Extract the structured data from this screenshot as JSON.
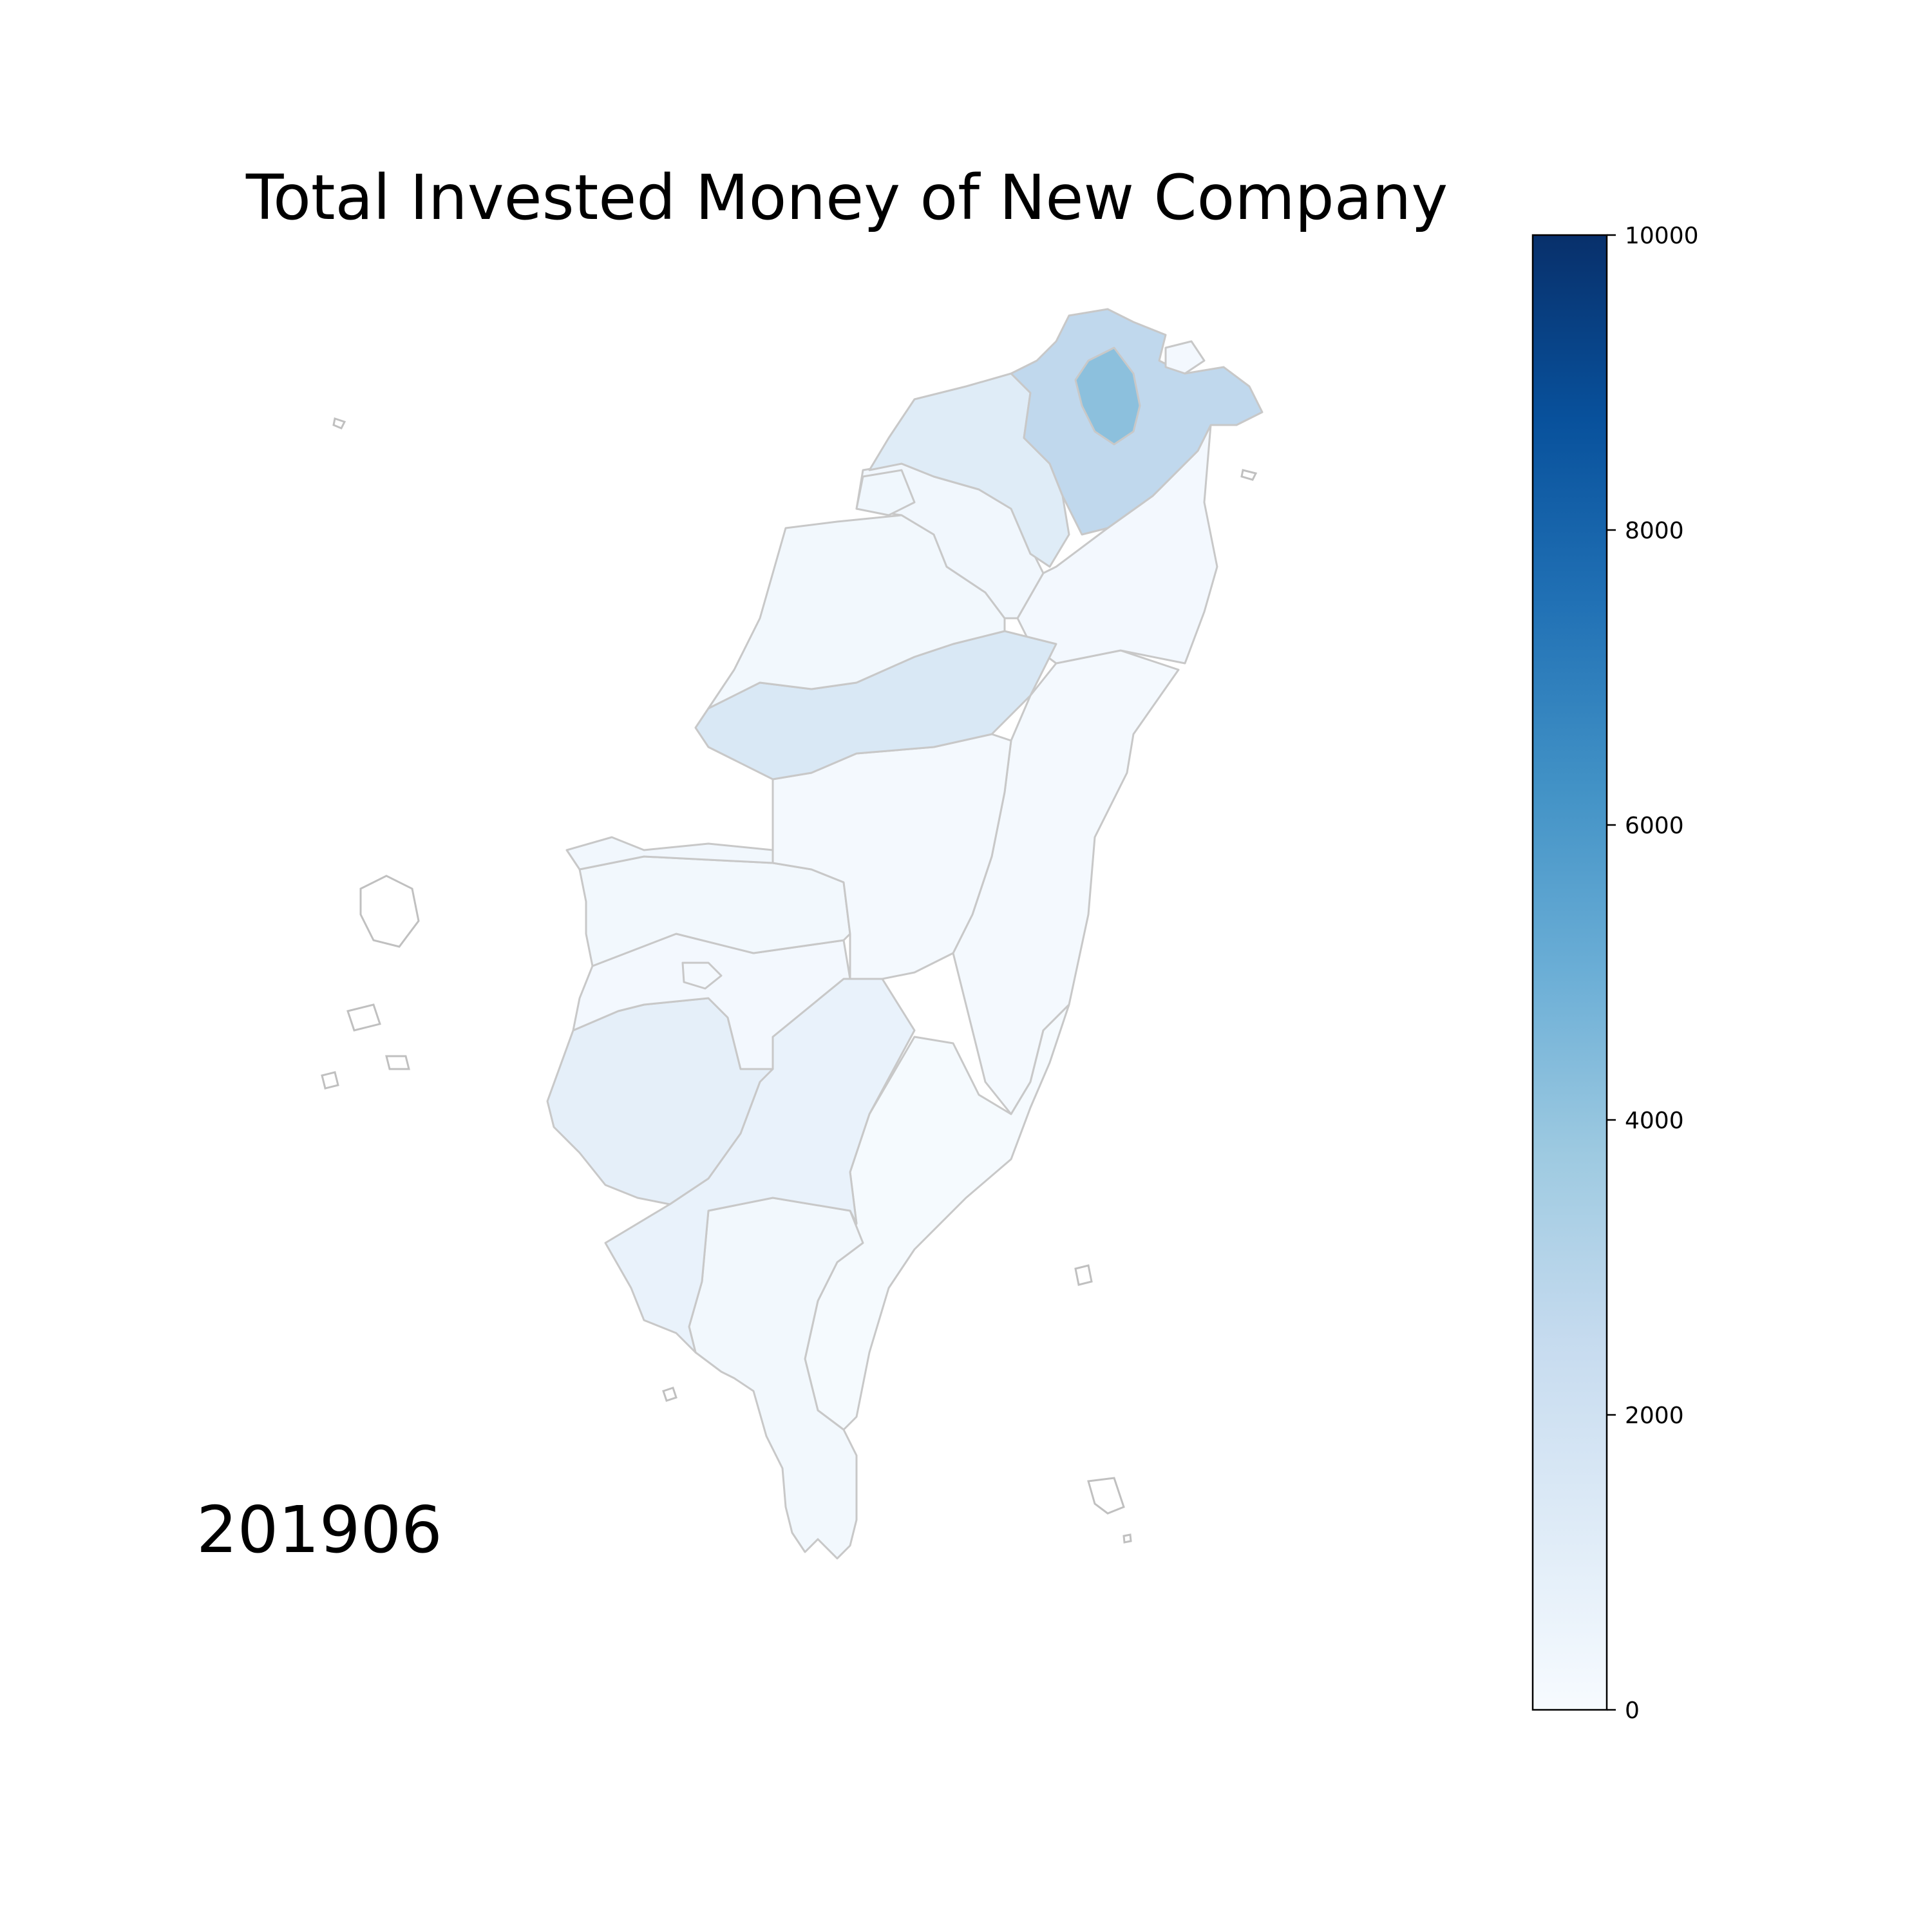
{
  "chart_data": {
    "type": "choropleth",
    "title": "Total Invested Money of New Company",
    "period_label": "201906",
    "colorbar": {
      "range": [
        0,
        10000
      ],
      "ticks": [
        0,
        2000,
        4000,
        6000,
        8000,
        10000
      ],
      "tick_labels": [
        "0",
        "2000",
        "4000",
        "6000",
        "8000",
        "10000"
      ],
      "colormap": "Blues",
      "colors": {
        "low": "#f7fbff",
        "q1": "#deebf7",
        "q2": "#c6dbef",
        "q3": "#9ecae1",
        "q4": "#6baed6",
        "q5": "#3182bd",
        "high": "#08306b"
      }
    },
    "regions": [
      {
        "id": "taipei",
        "value": 4200
      },
      {
        "id": "new-taipei",
        "value": 2700
      },
      {
        "id": "taoyuan",
        "value": 1200
      },
      {
        "id": "hsinchu-county",
        "value": 300
      },
      {
        "id": "hsinchu-city",
        "value": 350
      },
      {
        "id": "miaoli",
        "value": 250
      },
      {
        "id": "taichung",
        "value": 1500
      },
      {
        "id": "changhua",
        "value": 300
      },
      {
        "id": "nantou",
        "value": 150
      },
      {
        "id": "yunlin",
        "value": 250
      },
      {
        "id": "chiayi-county",
        "value": 200
      },
      {
        "id": "chiayi-city",
        "value": 150
      },
      {
        "id": "tainan",
        "value": 900
      },
      {
        "id": "kaohsiung",
        "value": 700
      },
      {
        "id": "pingtung",
        "value": 250
      },
      {
        "id": "yilan",
        "value": 200
      },
      {
        "id": "hualien",
        "value": 150
      },
      {
        "id": "taitung",
        "value": 100
      },
      {
        "id": "keelung",
        "value": 200
      }
    ]
  }
}
